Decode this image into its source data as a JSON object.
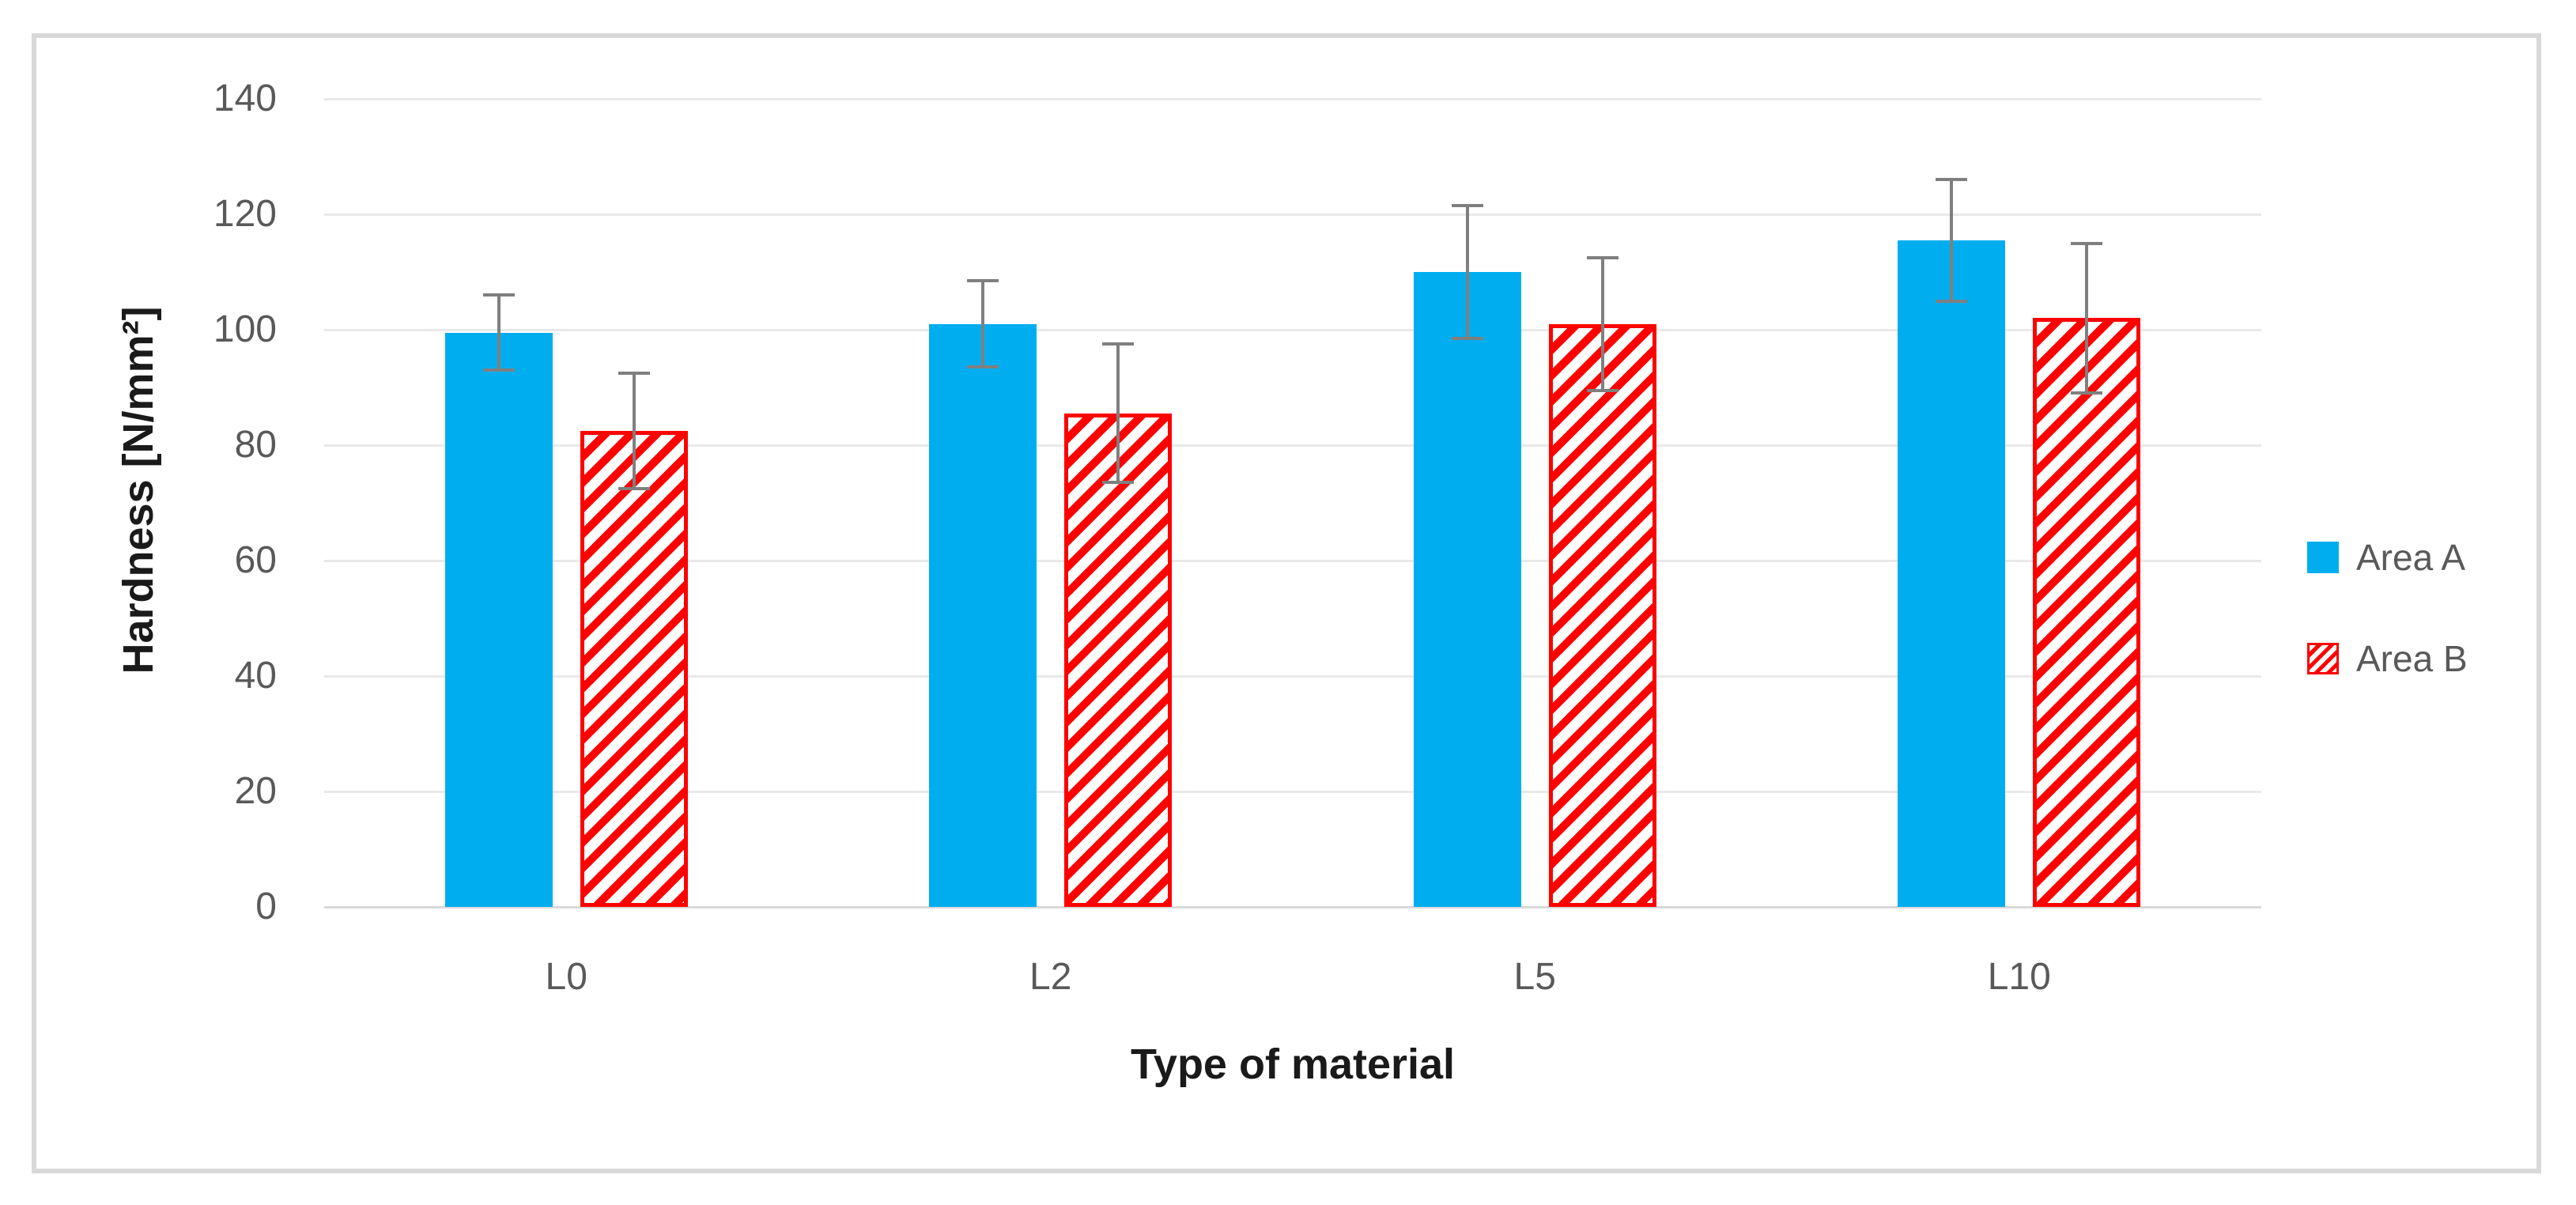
{
  "chart_data": {
    "type": "bar",
    "title": "",
    "categories": [
      "L0",
      "L2",
      "L5",
      "L10"
    ],
    "series": [
      {
        "name": "Area A",
        "pattern": "solid",
        "color": "#00AEEF",
        "values": [
          99.5,
          101,
          110,
          115.5
        ],
        "error_plus_minus": [
          6.5,
          7.5,
          11.5,
          10.5
        ]
      },
      {
        "name": "Area B",
        "pattern": "diagonal-hatch",
        "color": "#FF0000",
        "values": [
          82.5,
          85.5,
          101,
          102
        ],
        "error_plus_minus": [
          10,
          12,
          11.5,
          13
        ]
      }
    ],
    "xlabel": "Type of material",
    "ylabel": "Hardness [N/mm²]",
    "ylim": [
      0,
      140
    ],
    "yticks": [
      0,
      20,
      40,
      60,
      80,
      100,
      120,
      140
    ],
    "grid": true,
    "legend_position": "right",
    "error_bar_color": "#7F7F7F",
    "gridline_color": "#E9E9E9",
    "tick_label_color": "#595959",
    "figure_border_color": "#D8D8D8"
  },
  "legend": {
    "items": [
      {
        "label": "Area A"
      },
      {
        "label": "Area B"
      }
    ]
  }
}
